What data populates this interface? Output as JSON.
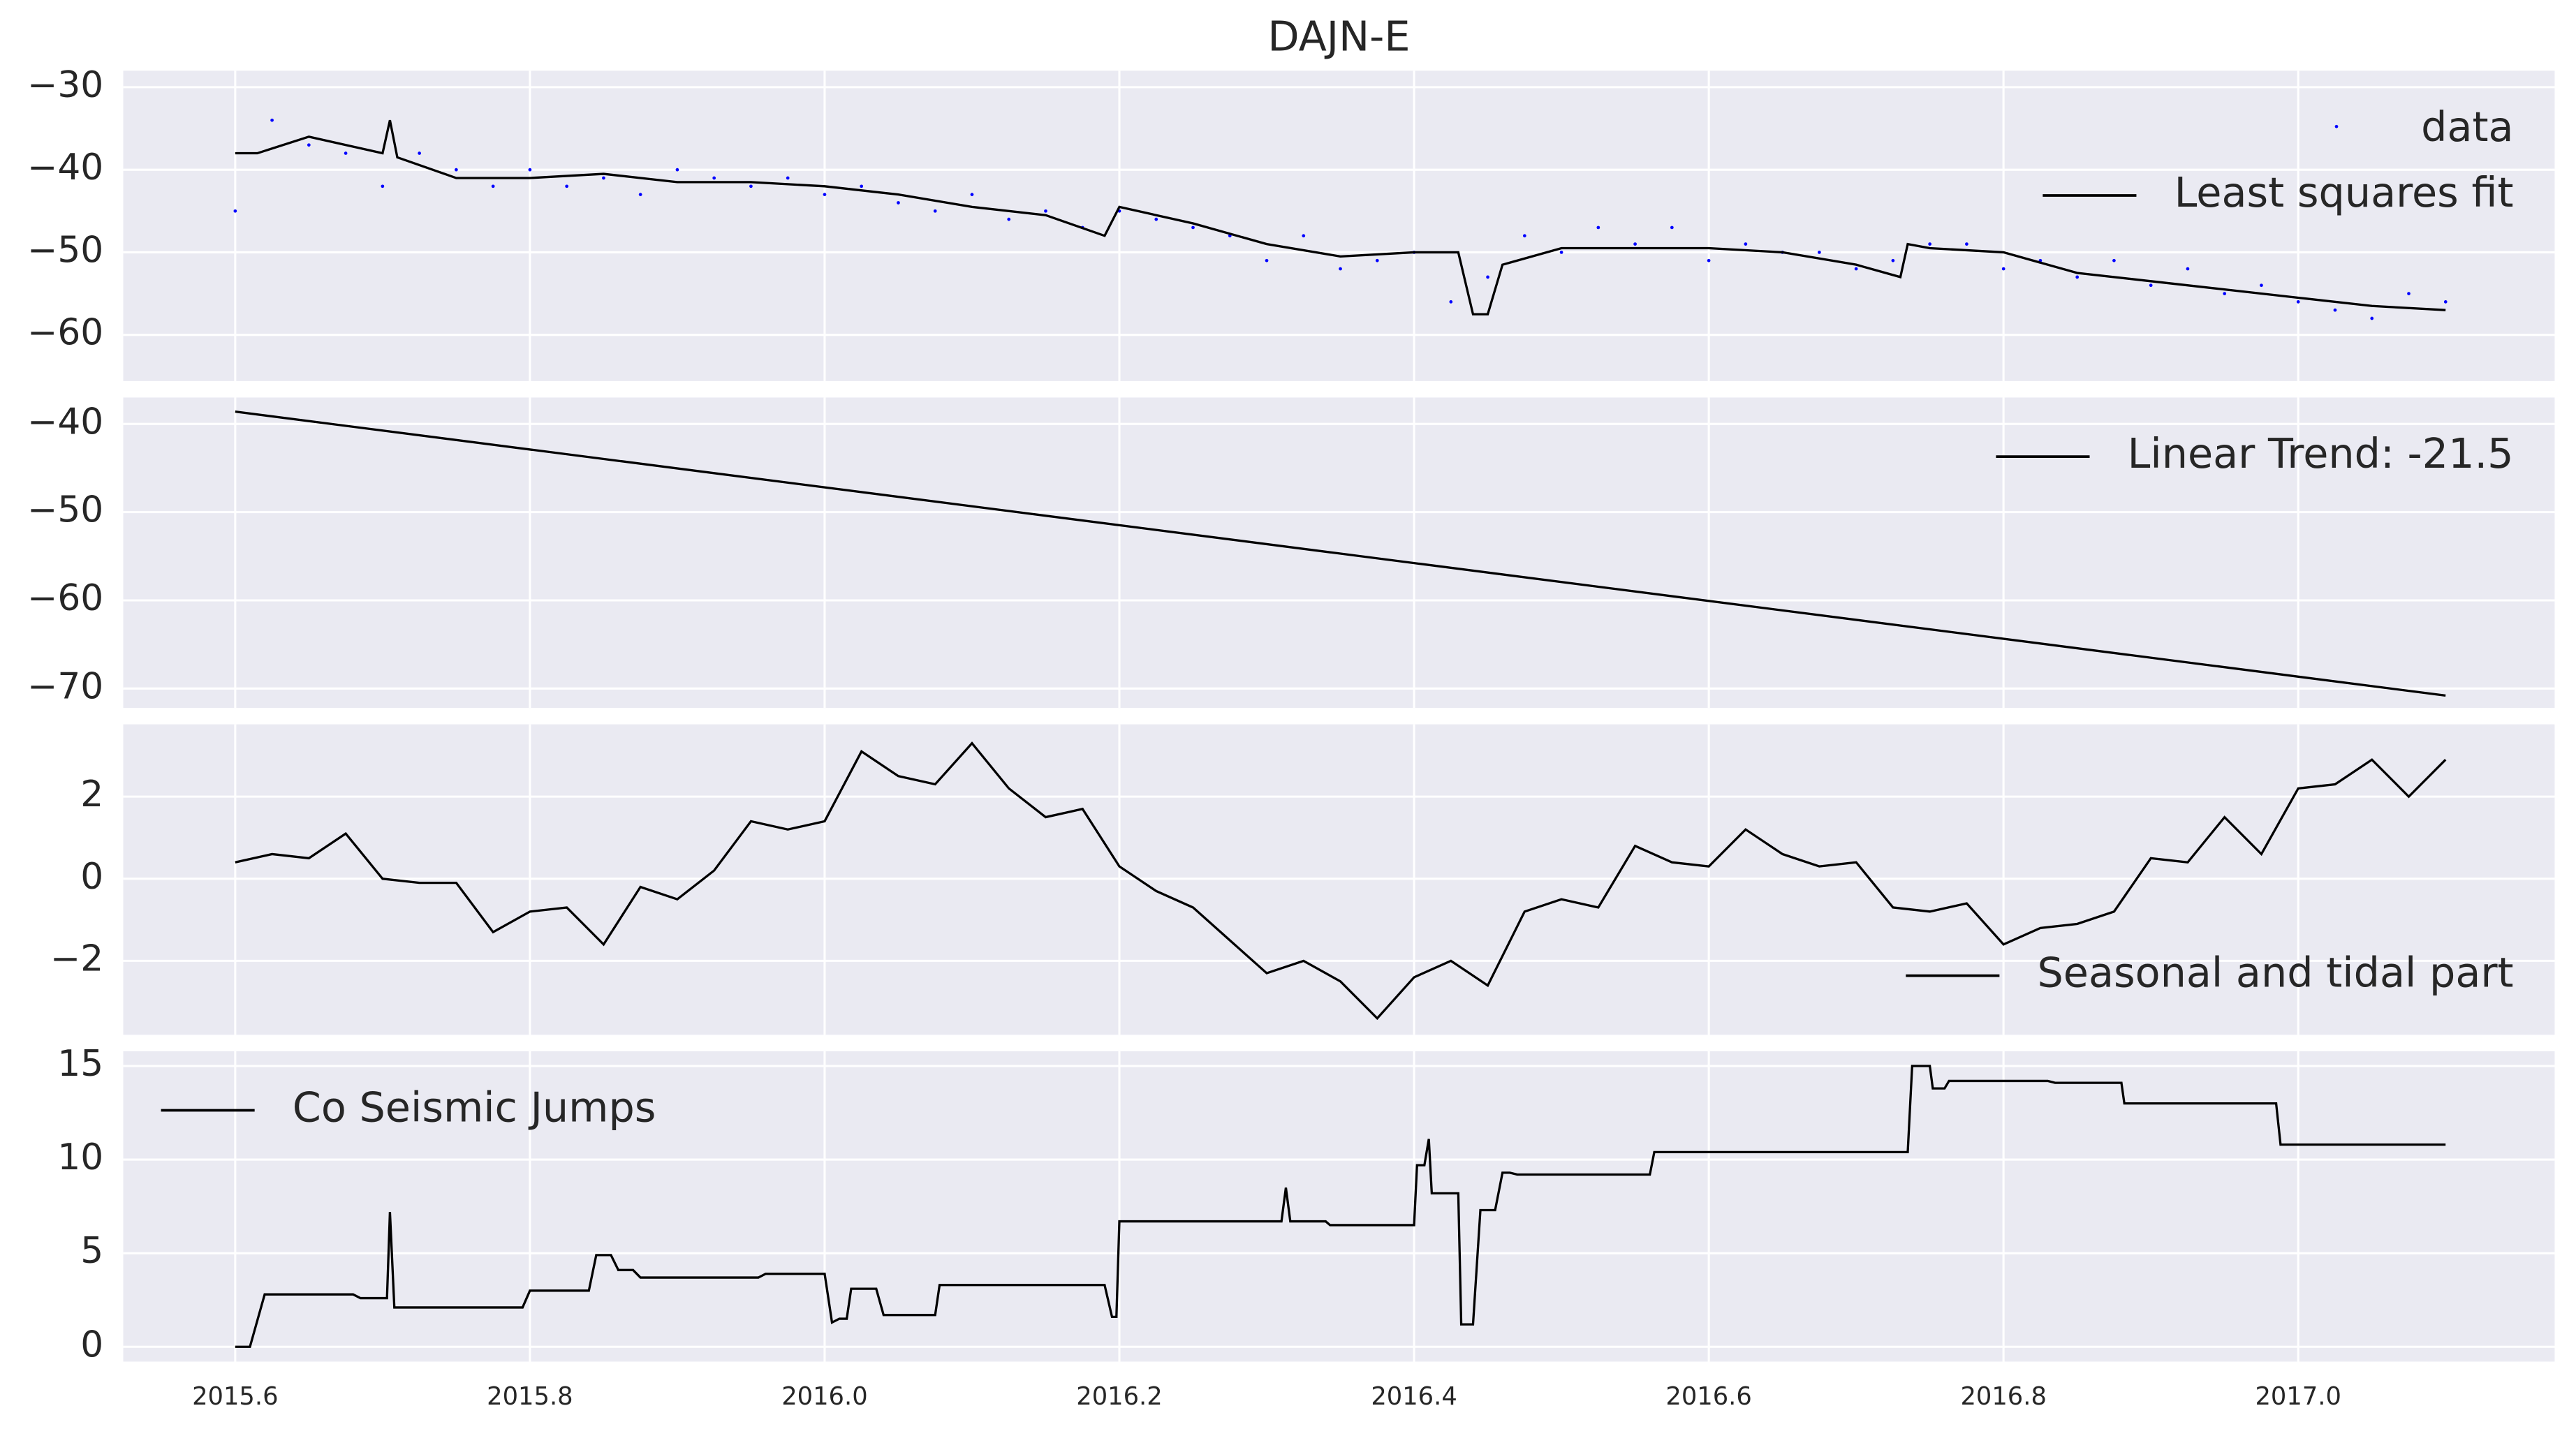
{
  "chart_data": [
    {
      "type": "line",
      "title": "DAJN-E",
      "xlim": [
        2015.524,
        2017.174
      ],
      "ylim": [
        -65.6,
        -28.0
      ],
      "yticks": [
        {
          "value": -30,
          "label": "−30"
        },
        {
          "value": -40,
          "label": "−40"
        },
        {
          "value": -50,
          "label": "−50"
        },
        {
          "value": -60,
          "label": "−60"
        }
      ],
      "legend": "upper right",
      "grid": true,
      "series": [
        {
          "name": "data",
          "color": "#0000ff",
          "style": "dots",
          "x": [
            2015.6,
            2015.625,
            2015.65,
            2015.675,
            2015.7,
            2015.725,
            2015.75,
            2015.775,
            2015.8,
            2015.825,
            2015.85,
            2015.875,
            2015.9,
            2015.925,
            2015.95,
            2015.975,
            2016.0,
            2016.025,
            2016.05,
            2016.075,
            2016.1,
            2016.125,
            2016.15,
            2016.175,
            2016.2,
            2016.225,
            2016.25,
            2016.275,
            2016.3,
            2016.325,
            2016.35,
            2016.375,
            2016.4,
            2016.425,
            2016.45,
            2016.475,
            2016.5,
            2016.525,
            2016.55,
            2016.575,
            2016.6,
            2016.625,
            2016.65,
            2016.675,
            2016.7,
            2016.725,
            2016.75,
            2016.775,
            2016.8,
            2016.825,
            2016.85,
            2016.875,
            2016.9,
            2016.925,
            2016.95,
            2016.975,
            2017.0,
            2017.025,
            2017.05,
            2017.075,
            2017.1
          ],
          "values": [
            -45,
            -34,
            -37,
            -38,
            -42,
            -38,
            -40,
            -42,
            -40,
            -42,
            -41,
            -43,
            -40,
            -41,
            -42,
            -41,
            -43,
            -42,
            -44,
            -45,
            -43,
            -46,
            -45,
            -47,
            -45,
            -46,
            -47,
            -48,
            -51,
            -48,
            -52,
            -51,
            -50,
            -56,
            -53,
            -48,
            -50,
            -47,
            -49,
            -47,
            -51,
            -49,
            -50,
            -50,
            -52,
            -51,
            -49,
            -49,
            -52,
            -51,
            -53,
            -51,
            -54,
            -52,
            -55,
            -54,
            -56,
            -57,
            -58,
            -55,
            -56
          ]
        },
        {
          "name": "Least squares fit",
          "color": "#000000",
          "style": "line",
          "x": [
            2015.6,
            2015.615,
            2015.65,
            2015.7,
            2015.705,
            2015.71,
            2015.75,
            2015.8,
            2015.85,
            2015.9,
            2015.95,
            2016.0,
            2016.05,
            2016.1,
            2016.15,
            2016.19,
            2016.2,
            2016.25,
            2016.3,
            2016.35,
            2016.4,
            2016.43,
            2016.44,
            2016.45,
            2016.46,
            2016.5,
            2016.55,
            2016.6,
            2016.65,
            2016.7,
            2016.73,
            2016.735,
            2016.75,
            2016.8,
            2016.85,
            2016.9,
            2016.95,
            2017.0,
            2017.05,
            2017.1
          ],
          "values": [
            -38,
            -38,
            -36,
            -38,
            -34,
            -38.5,
            -41,
            -41,
            -40.5,
            -41.5,
            -41.5,
            -42,
            -43,
            -44.5,
            -45.5,
            -48,
            -44.5,
            -46.5,
            -49,
            -50.5,
            -50,
            -50,
            -57.5,
            -57.5,
            -51.5,
            -49.5,
            -49.5,
            -49.5,
            -50,
            -51.5,
            -53,
            -49,
            -49.5,
            -50,
            -52.5,
            -53.5,
            -54.5,
            -55.5,
            -56.5,
            -57
          ]
        }
      ]
    },
    {
      "type": "line",
      "xlim": [
        2015.524,
        2017.174
      ],
      "ylim": [
        -72.2,
        -37.0
      ],
      "yticks": [
        {
          "value": -40,
          "label": "−40"
        },
        {
          "value": -50,
          "label": "−50"
        },
        {
          "value": -60,
          "label": "−60"
        },
        {
          "value": -70,
          "label": "−70"
        }
      ],
      "legend": "upper right",
      "grid": true,
      "series": [
        {
          "name": "Linear Trend: -21.5",
          "color": "#000000",
          "style": "line",
          "x": [
            2015.6,
            2017.1
          ],
          "values": [
            -38.6,
            -70.8
          ]
        }
      ]
    },
    {
      "type": "line",
      "xlim": [
        2015.524,
        2017.174
      ],
      "ylim": [
        -3.8,
        3.76
      ],
      "yticks": [
        2,
        0,
        {
          "value": -2,
          "label": "−2"
        }
      ],
      "legend": "lower right",
      "grid": true,
      "series": [
        {
          "name": "Seasonal and tidal part",
          "color": "#000000",
          "style": "line",
          "x": [
            2015.6,
            2015.625,
            2015.65,
            2015.675,
            2015.7,
            2015.725,
            2015.75,
            2015.775,
            2015.8,
            2015.825,
            2015.85,
            2015.875,
            2015.9,
            2015.925,
            2015.95,
            2015.975,
            2016.0,
            2016.025,
            2016.05,
            2016.075,
            2016.1,
            2016.125,
            2016.15,
            2016.175,
            2016.2,
            2016.225,
            2016.25,
            2016.275,
            2016.3,
            2016.325,
            2016.35,
            2016.375,
            2016.4,
            2016.425,
            2016.45,
            2016.475,
            2016.5,
            2016.525,
            2016.55,
            2016.575,
            2016.6,
            2016.625,
            2016.65,
            2016.675,
            2016.7,
            2016.725,
            2016.75,
            2016.775,
            2016.8,
            2016.825,
            2016.85,
            2016.875,
            2016.9,
            2016.925,
            2016.95,
            2016.975,
            2017.0,
            2017.025,
            2017.05,
            2017.075,
            2017.1
          ],
          "values": [
            0.4,
            0.6,
            0.5,
            1.1,
            0,
            -0.1,
            -0.1,
            -1.3,
            -0.8,
            -0.7,
            -1.6,
            -0.2,
            -0.5,
            0.2,
            1.4,
            1.2,
            1.4,
            3.1,
            2.5,
            2.3,
            3.3,
            2.2,
            1.5,
            1.7,
            0.3,
            -0.3,
            -0.7,
            -1.5,
            -2.3,
            -2.0,
            -2.5,
            -3.4,
            -2.4,
            -2.0,
            -2.6,
            -0.8,
            -0.5,
            -0.7,
            0.8,
            0.4,
            0.3,
            1.2,
            0.6,
            0.3,
            0.4,
            -0.7,
            -0.8,
            -0.6,
            -1.6,
            -1.2,
            -1.1,
            -0.8,
            0.5,
            0.4,
            1.5,
            0.6,
            2.2,
            2.3,
            2.9,
            2.0,
            2.9
          ]
        }
      ]
    },
    {
      "type": "line",
      "xlim": [
        2015.524,
        2017.174
      ],
      "ylim": [
        -0.79,
        15.79
      ],
      "yticks": [
        15,
        10,
        5,
        0
      ],
      "xticks": [
        2015.6,
        2015.8,
        {
          "value": 2016.0,
          "label": "2016.0"
        },
        2016.2,
        2016.4,
        2016.6,
        2016.8,
        {
          "value": 2017.0,
          "label": "2017.0"
        }
      ],
      "legend": "upper left",
      "grid": true,
      "series": [
        {
          "name": "Co Seismic Jumps",
          "color": "#000000",
          "style": "line",
          "x": [
            2015.6,
            2015.61,
            2015.62,
            2015.68,
            2015.685,
            2015.703,
            2015.705,
            2015.708,
            2015.795,
            2015.8,
            2015.84,
            2015.845,
            2015.855,
            2015.86,
            2015.87,
            2015.875,
            2015.955,
            2015.96,
            2016.0,
            2016.005,
            2016.01,
            2016.015,
            2016.018,
            2016.035,
            2016.04,
            2016.075,
            2016.078,
            2016.19,
            2016.195,
            2016.198,
            2016.2,
            2016.31,
            2016.313,
            2016.316,
            2016.34,
            2016.343,
            2016.4,
            2016.402,
            2016.407,
            2016.41,
            2016.412,
            2016.43,
            2016.432,
            2016.44,
            2016.445,
            2016.455,
            2016.46,
            2016.465,
            2016.47,
            2016.56,
            2016.563,
            2016.735,
            2016.738,
            2016.75,
            2016.752,
            2016.76,
            2016.763,
            2016.83,
            2016.835,
            2016.88,
            2016.882,
            2016.985,
            2016.988,
            2017.1
          ],
          "values": [
            0,
            0,
            2.8,
            2.8,
            2.6,
            2.6,
            7.2,
            2.1,
            2.1,
            3.0,
            3.0,
            4.9,
            4.9,
            4.1,
            4.1,
            3.7,
            3.7,
            3.9,
            3.9,
            1.3,
            1.5,
            1.5,
            3.1,
            3.1,
            1.7,
            1.7,
            3.3,
            3.3,
            1.6,
            1.6,
            6.7,
            6.7,
            8.5,
            6.7,
            6.7,
            6.5,
            6.5,
            9.7,
            9.7,
            11.1,
            8.2,
            8.2,
            1.2,
            1.2,
            7.3,
            7.3,
            9.3,
            9.3,
            9.2,
            9.2,
            10.4,
            10.4,
            15.0,
            15.0,
            13.8,
            13.8,
            14.2,
            14.2,
            14.1,
            14.1,
            13.0,
            13.0,
            10.8,
            10.8
          ]
        }
      ]
    }
  ]
}
